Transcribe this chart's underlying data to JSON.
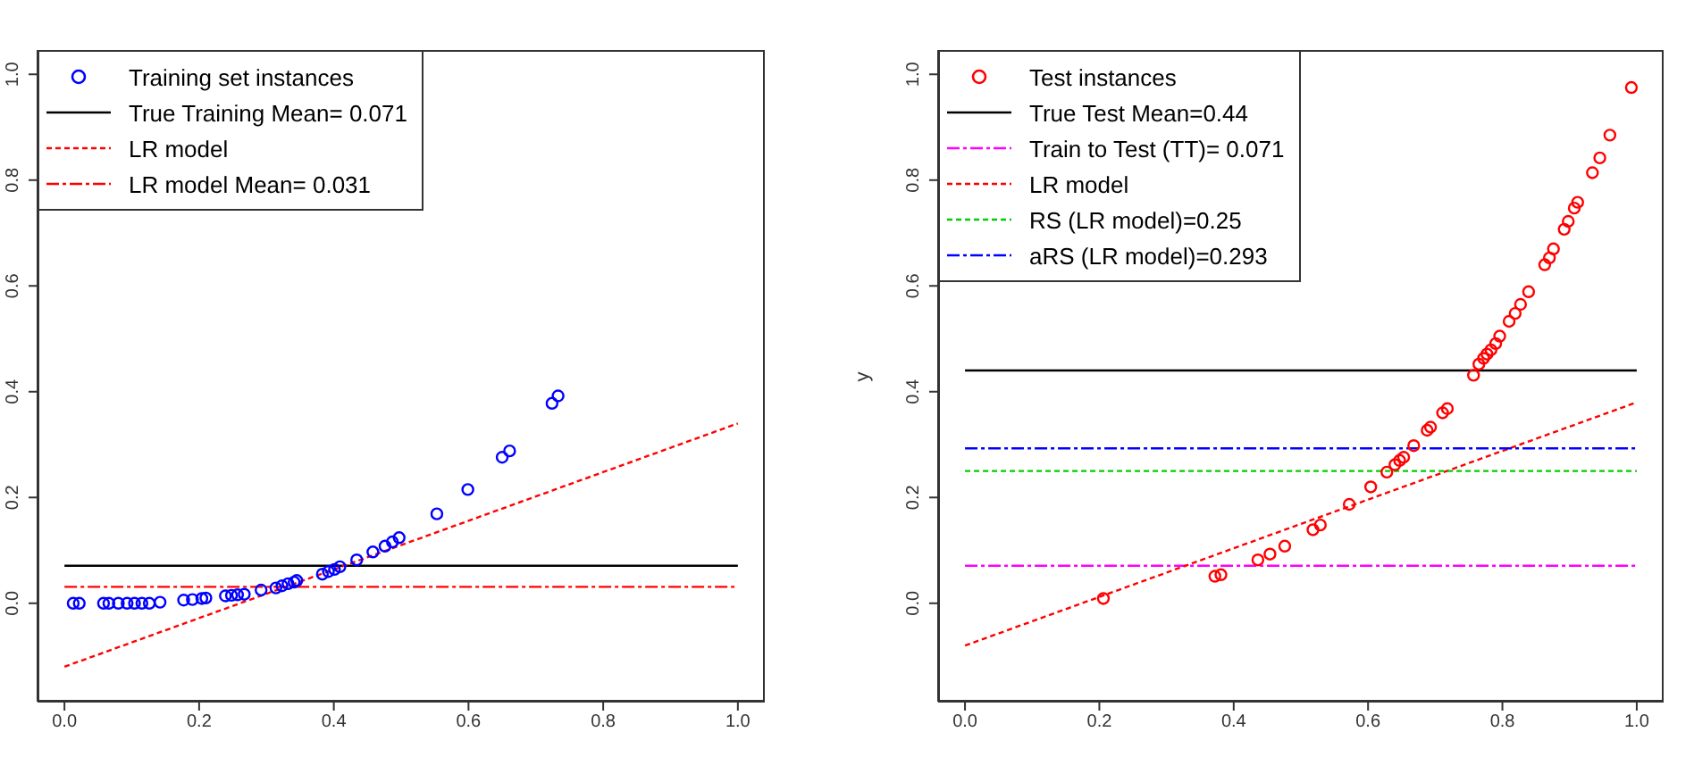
{
  "chart_data": [
    {
      "type": "scatter",
      "legend": "top left",
      "xlim": [
        -0.04,
        1.04
      ],
      "ylim": [
        -0.186,
        1.046
      ],
      "xticks": [
        {
          "value": 0,
          "label": "0.0"
        },
        {
          "value": 0.2,
          "label": "0.2"
        },
        {
          "value": 0.4,
          "label": "0.4"
        },
        {
          "value": 0.6,
          "label": "0.6"
        },
        {
          "value": 0.8,
          "label": "0.8"
        },
        {
          "value": 1,
          "label": "1.0"
        }
      ],
      "yticks": [
        {
          "value": 0,
          "label": "0.0"
        },
        {
          "value": 0.2,
          "label": "0.2"
        },
        {
          "value": 0.4,
          "label": "0.4"
        },
        {
          "value": 0.6,
          "label": "0.6"
        },
        {
          "value": 0.8,
          "label": "0.8"
        },
        {
          "value": 1,
          "label": "1.0"
        }
      ],
      "series": [
        {
          "name": "Training set instances",
          "type": "scatter",
          "marker": "circle",
          "color": "#0000ff",
          "x": [
            0.013,
            0.022,
            0.058,
            0.066,
            0.08,
            0.093,
            0.104,
            0.115,
            0.126,
            0.142,
            0.177,
            0.19,
            0.204,
            0.21,
            0.239,
            0.248,
            0.257,
            0.267,
            0.292,
            0.314,
            0.323,
            0.332,
            0.341,
            0.345,
            0.383,
            0.392,
            0.401,
            0.409,
            0.434,
            0.458,
            0.476,
            0.487,
            0.497,
            0.553,
            0.599,
            0.65,
            0.661,
            0.724,
            0.733
          ],
          "values": [
            0,
            0,
            0,
            0,
            0,
            0,
            0,
            0,
            0,
            0.002,
            0.006,
            0.007,
            0.009,
            0.01,
            0.014,
            0.015,
            0.016,
            0.017,
            0.025,
            0.029,
            0.033,
            0.037,
            0.04,
            0.043,
            0.055,
            0.06,
            0.064,
            0.069,
            0.082,
            0.097,
            0.108,
            0.116,
            0.124,
            0.169,
            0.215,
            0.276,
            0.288,
            0.378,
            0.392
          ]
        },
        {
          "name": "True Training Mean= 0.071",
          "type": "line",
          "marker": "none",
          "line_style": "solid",
          "color": "#000000",
          "x": [
            0,
            1
          ],
          "values": [
            0.071,
            0.071
          ]
        },
        {
          "name": "LR model",
          "type": "line",
          "marker": "none",
          "line_style": "dotted",
          "color": "#ff0000",
          "x": [
            0,
            1
          ],
          "values": [
            -0.12,
            0.34
          ]
        },
        {
          "name": "LR model Mean= 0.031",
          "type": "line",
          "marker": "none",
          "line_style": "dashed",
          "color": "#ff0000",
          "x": [
            0,
            1
          ],
          "values": [
            0.031,
            0.031
          ]
        }
      ]
    },
    {
      "type": "scatter",
      "legend": "top left",
      "ylabel": "y",
      "xlim": [
        -0.04,
        1.04
      ],
      "ylim": [
        -0.186,
        1.046
      ],
      "xticks": [
        {
          "value": 0,
          "label": "0.0"
        },
        {
          "value": 0.2,
          "label": "0.2"
        },
        {
          "value": 0.4,
          "label": "0.4"
        },
        {
          "value": 0.6,
          "label": "0.6"
        },
        {
          "value": 0.8,
          "label": "0.8"
        },
        {
          "value": 1,
          "label": "1.0"
        }
      ],
      "yticks": [
        {
          "value": 0,
          "label": "0.0"
        },
        {
          "value": 0.2,
          "label": "0.2"
        },
        {
          "value": 0.4,
          "label": "0.4"
        },
        {
          "value": 0.6,
          "label": "0.6"
        },
        {
          "value": 0.8,
          "label": "0.8"
        },
        {
          "value": 1,
          "label": "1.0"
        }
      ],
      "series": [
        {
          "name": "Test instances",
          "type": "scatter",
          "marker": "circle",
          "color": "#ff0000",
          "x": [
            0.206,
            0.372,
            0.381,
            0.436,
            0.454,
            0.476,
            0.518,
            0.529,
            0.572,
            0.604,
            0.628,
            0.64,
            0.647,
            0.653,
            0.668,
            0.688,
            0.693,
            0.711,
            0.718,
            0.757,
            0.765,
            0.772,
            0.777,
            0.783,
            0.79,
            0.796,
            0.81,
            0.819,
            0.827,
            0.839,
            0.863,
            0.87,
            0.876,
            0.892,
            0.898,
            0.907,
            0.912,
            0.934,
            0.945,
            0.96,
            0.992
          ],
          "values": [
            0.009,
            0.051,
            0.054,
            0.082,
            0.093,
            0.108,
            0.139,
            0.148,
            0.187,
            0.22,
            0.248,
            0.262,
            0.27,
            0.276,
            0.298,
            0.327,
            0.333,
            0.36,
            0.368,
            0.431,
            0.452,
            0.463,
            0.471,
            0.479,
            0.491,
            0.505,
            0.533,
            0.548,
            0.565,
            0.589,
            0.64,
            0.653,
            0.67,
            0.707,
            0.722,
            0.747,
            0.758,
            0.814,
            0.842,
            0.885,
            0.975
          ]
        },
        {
          "name": "True Test Mean=0.44",
          "type": "line",
          "marker": "none",
          "line_style": "solid",
          "color": "#000000",
          "x": [
            0,
            1
          ],
          "values": [
            0.44,
            0.44
          ]
        },
        {
          "name": "Train to Test (TT)= 0.071",
          "type": "line",
          "marker": "none",
          "line_style": "dashed",
          "color": "#ff00ff",
          "x": [
            0,
            1
          ],
          "values": [
            0.071,
            0.071
          ]
        },
        {
          "name": "LR model",
          "type": "line",
          "marker": "none",
          "line_style": "dotted",
          "color": "#ff0000",
          "x": [
            0,
            1
          ],
          "values": [
            -0.08,
            0.38
          ]
        },
        {
          "name": "RS (LR model)=0.25",
          "type": "line",
          "marker": "none",
          "line_style": "dotted",
          "color": "#00cd00",
          "x": [
            0,
            1
          ],
          "values": [
            0.25,
            0.25
          ]
        },
        {
          "name": "aRS (LR model)=0.293",
          "type": "line",
          "marker": "none",
          "line_style": "dashed",
          "color": "#0000ff",
          "x": [
            0,
            1
          ],
          "values": [
            0.293,
            0.293
          ]
        }
      ]
    }
  ]
}
